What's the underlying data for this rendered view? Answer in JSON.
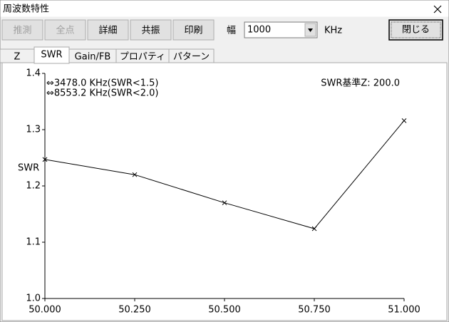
{
  "window": {
    "title": "周波数特性"
  },
  "toolbar": {
    "buttons": [
      {
        "label": "推測",
        "disabled": true
      },
      {
        "label": "全点",
        "disabled": true
      },
      {
        "label": "詳細",
        "disabled": false
      },
      {
        "label": "共振",
        "disabled": false
      },
      {
        "label": "印刷",
        "disabled": false
      }
    ],
    "width_label": "幅",
    "width_value": "1000",
    "unit": "KHz",
    "close_button": "閉じる"
  },
  "tabs": {
    "items": [
      "Z",
      "SWR",
      "Gain/FB",
      "プロパティ",
      "パターン"
    ],
    "active": 1
  },
  "chart_data": {
    "type": "line",
    "y_label": "SWR",
    "annotations": [
      "⇔3478.0 KHz(SWR<1.5)",
      "⇔8553.2 KHz(SWR<2.0)"
    ],
    "reference_label": "SWR基準Z: 200.0",
    "x": [
      50,
      50.25,
      50.5,
      50.75,
      51
    ],
    "values": [
      1.247,
      1.22,
      1.17,
      1.124,
      1.316
    ],
    "color": "#000000",
    "xlim": [
      50,
      51
    ],
    "xticks": [
      {
        "value": 50,
        "label": "50.000"
      },
      {
        "value": 50.25,
        "label": "50.250"
      },
      {
        "value": 50.5,
        "label": "50.500"
      },
      {
        "value": 50.75,
        "label": "50.750"
      },
      {
        "value": 51,
        "label": "51.000"
      }
    ],
    "ylim": [
      1.0,
      1.4
    ],
    "yticks": [
      {
        "value": 1.0,
        "label": "1.0"
      },
      1.1,
      1.2,
      1.3,
      1.4
    ],
    "grid": false
  }
}
